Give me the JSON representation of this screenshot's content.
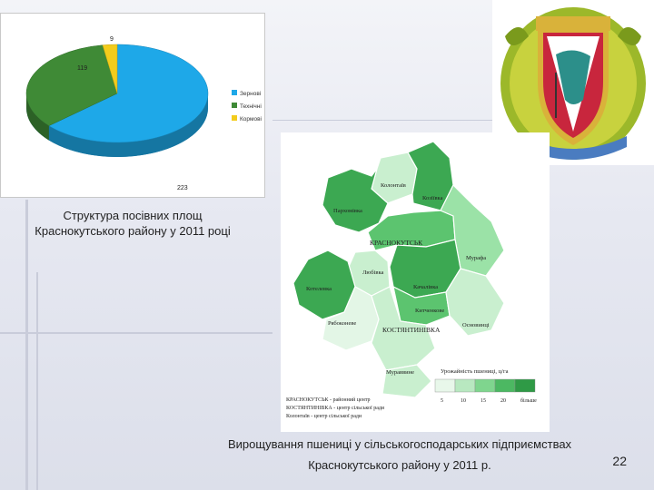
{
  "pie": {
    "chart_data": {
      "type": "pie",
      "slices": [
        {
          "label": "Зернові",
          "value": 223,
          "color": "#1ea8e8"
        },
        {
          "label": "Технічні",
          "value": 119,
          "color": "#3f8a36"
        },
        {
          "label": "Кормові",
          "value": 9,
          "color": "#f3cc1c"
        }
      ],
      "legend_position": "right"
    },
    "slice_labels": [
      "223",
      "119",
      "9"
    ],
    "caption_line1": "Структура посівних площ",
    "caption_line2": "Краснокутського району у 2011 році"
  },
  "map": {
    "districts": [
      {
        "name": "Колонтаїв",
        "shade": "#c9efcf"
      },
      {
        "name": "Козіївка",
        "shade": "#3ca852"
      },
      {
        "name": "Пархомівка",
        "shade": "#3ca852"
      },
      {
        "name": "КРАСНОКУТСЬК",
        "shade": "#5cc46f"
      },
      {
        "name": "Мурафа",
        "shade": "#9be2a7"
      },
      {
        "name": "Любівка",
        "shade": "#c9efcf"
      },
      {
        "name": "Котелевка",
        "shade": "#3ca852"
      },
      {
        "name": "Качалівка",
        "shade": "#3ca852"
      },
      {
        "name": "Рябоконеве",
        "shade": "#e3f6e6"
      },
      {
        "name": "Китченкове",
        "shade": "#5cc46f"
      },
      {
        "name": "КОСТЯНТИНІВКА",
        "shade": "#c9efcf"
      },
      {
        "name": "Основинці",
        "shade": "#c9efcf"
      },
      {
        "name": "Мураввине",
        "shade": "#c9efcf"
      }
    ],
    "legend_title": "Урожайність пшениці, ц/га",
    "legend_scale": [
      "5",
      "10",
      "15",
      "20",
      "більше"
    ],
    "legend_colors": [
      "#e8f7ea",
      "#b8e8c0",
      "#7fd58e",
      "#4cb862",
      "#2f9a46"
    ],
    "key_lines": [
      "КРАСНОКУТСЬК - районний центр",
      "КОСТЯНТИНІВКА - центр сільської ради",
      "Колонтаїв - центр сільської ради"
    ],
    "caption_line1": "Вирощування пшениці у сільськогосподарських підприємствах",
    "caption_line2": "Краснокутського району у 2011 р."
  },
  "slide_number": "22"
}
